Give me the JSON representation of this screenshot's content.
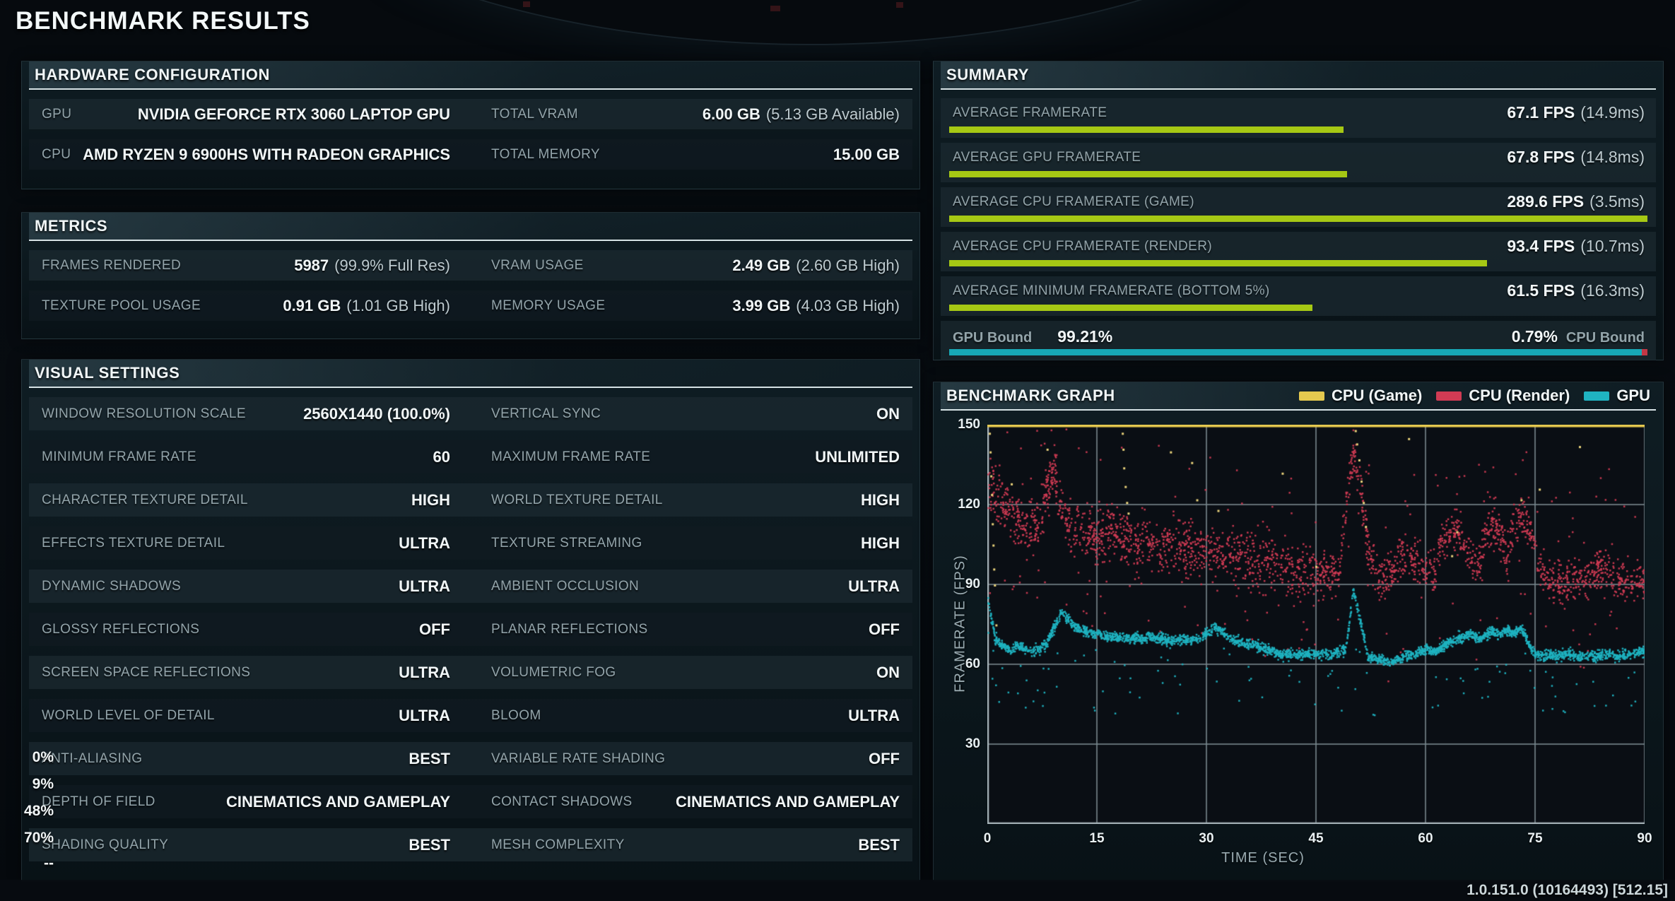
{
  "title": "BENCHMARK RESULTS",
  "colors": {
    "green": "#a6c814",
    "teal": "#17a8b6",
    "red": "#c23745",
    "yellow": "#e5c94f",
    "scatter_red": "#d13b54",
    "scatter_teal": "#1fb3c1",
    "scatter_yellow": "#e9d27a",
    "grid": "#78878d",
    "axis": "#a7b4b9",
    "plot_bg": "#0a0e14"
  },
  "panels": {
    "hardware": {
      "title": "HARDWARE CONFIGURATION",
      "rows": [
        {
          "cells": [
            {
              "label": "GPU",
              "value": "NVIDIA GEFORCE RTX 3060 LAPTOP GPU",
              "note": ""
            },
            {
              "label": "TOTAL VRAM",
              "value": "6.00 GB",
              "note": "(5.13 GB Available)"
            }
          ]
        },
        {
          "cells": [
            {
              "label": "CPU",
              "value": "AMD RYZEN 9 6900HS WITH RADEON GRAPHICS",
              "note": ""
            },
            {
              "label": "TOTAL MEMORY",
              "value": "15.00 GB",
              "note": ""
            }
          ]
        }
      ]
    },
    "metrics": {
      "title": "METRICS",
      "rows": [
        {
          "cells": [
            {
              "label": "FRAMES RENDERED",
              "value": "5987",
              "note": "(99.9% Full Res)"
            },
            {
              "label": "VRAM USAGE",
              "value": "2.49 GB",
              "note": "(2.60 GB High)"
            }
          ]
        },
        {
          "cells": [
            {
              "label": "TEXTURE POOL USAGE",
              "value": "0.91 GB",
              "note": "(1.01 GB High)"
            },
            {
              "label": "MEMORY USAGE",
              "value": "3.99 GB",
              "note": "(4.03 GB High)"
            }
          ]
        }
      ]
    },
    "visual": {
      "title": "VISUAL SETTINGS",
      "rows": [
        {
          "cells": [
            {
              "label": "WINDOW RESOLUTION SCALE",
              "value": "2560X1440 (100.0%)",
              "note": ""
            },
            {
              "label": "VERTICAL SYNC",
              "value": "ON",
              "note": ""
            }
          ]
        },
        {
          "cells": [
            {
              "label": "MINIMUM FRAME RATE",
              "value": "60",
              "note": ""
            },
            {
              "label": "MAXIMUM FRAME RATE",
              "value": "UNLIMITED",
              "note": ""
            }
          ]
        },
        {
          "cells": [
            {
              "label": "CHARACTER TEXTURE DETAIL",
              "value": "HIGH",
              "note": ""
            },
            {
              "label": "WORLD TEXTURE DETAIL",
              "value": "HIGH",
              "note": ""
            }
          ]
        },
        {
          "cells": [
            {
              "label": "EFFECTS TEXTURE DETAIL",
              "value": "ULTRA",
              "note": ""
            },
            {
              "label": "TEXTURE STREAMING",
              "value": "HIGH",
              "note": ""
            }
          ]
        },
        {
          "cells": [
            {
              "label": "DYNAMIC SHADOWS",
              "value": "ULTRA",
              "note": ""
            },
            {
              "label": "AMBIENT OCCLUSION",
              "value": "ULTRA",
              "note": ""
            }
          ]
        },
        {
          "cells": [
            {
              "label": "GLOSSY REFLECTIONS",
              "value": "OFF",
              "note": ""
            },
            {
              "label": "PLANAR REFLECTIONS",
              "value": "OFF",
              "note": ""
            }
          ]
        },
        {
          "cells": [
            {
              "label": "SCREEN SPACE REFLECTIONS",
              "value": "ULTRA",
              "note": ""
            },
            {
              "label": "VOLUMETRIC FOG",
              "value": "ON",
              "note": ""
            }
          ]
        },
        {
          "cells": [
            {
              "label": "WORLD LEVEL OF DETAIL",
              "value": "ULTRA",
              "note": ""
            },
            {
              "label": "BLOOM",
              "value": "ULTRA",
              "note": ""
            }
          ]
        },
        {
          "cells": [
            {
              "label": "ANTI-ALIASING",
              "value": "BEST",
              "note": ""
            },
            {
              "label": "VARIABLE RATE SHADING",
              "value": "OFF",
              "note": ""
            }
          ]
        },
        {
          "cells": [
            {
              "label": "DEPTH OF FIELD",
              "value": "CINEMATICS AND GAMEPLAY",
              "note": ""
            },
            {
              "label": "CONTACT SHADOWS",
              "value": "CINEMATICS AND GAMEPLAY",
              "note": ""
            }
          ]
        },
        {
          "cells": [
            {
              "label": "SHADING QUALITY",
              "value": "BEST",
              "note": ""
            },
            {
              "label": "MESH COMPLEXITY",
              "value": "BEST",
              "note": ""
            }
          ]
        }
      ]
    },
    "summary": {
      "title": "SUMMARY",
      "rows": [
        {
          "label": "AVERAGE FRAMERATE",
          "value": "67.1 FPS",
          "note": "(14.9ms)",
          "bar_pct": 56.5
        },
        {
          "label": "AVERAGE GPU FRAMERATE",
          "value": "67.8 FPS",
          "note": "(14.8ms)",
          "bar_pct": 57
        },
        {
          "label": "AVERAGE CPU FRAMERATE (GAME)",
          "value": "289.6 FPS",
          "note": "(3.5ms)",
          "bar_pct": 100
        },
        {
          "label": "AVERAGE CPU FRAMERATE (RENDER)",
          "value": "93.4 FPS",
          "note": "(10.7ms)",
          "bar_pct": 77
        },
        {
          "label": "AVERAGE MINIMUM FRAMERATE (BOTTOM 5%)",
          "value": "61.5 FPS",
          "note": "(16.3ms)",
          "bar_pct": 52
        }
      ],
      "bound": {
        "left_label": "GPU Bound",
        "left_value": "99.21%",
        "right_value": "0.79%",
        "right_label": "CPU Bound",
        "gpu_pct": 99.21,
        "cpu_pct": 0.79
      }
    },
    "graph": {
      "title": "BENCHMARK GRAPH",
      "legend": [
        {
          "label": "CPU (Game)",
          "color_key": "yellow"
        },
        {
          "label": "CPU (Render)",
          "color_key": "scatter_red"
        },
        {
          "label": "GPU",
          "color_key": "scatter_teal"
        }
      ]
    }
  },
  "left_edge_overlay": [
    "0%",
    "9%",
    "48%",
    "70%",
    "--"
  ],
  "footer": {
    "version": "1.0.151.0 (10164493) [512.15]"
  },
  "chart_data": {
    "type": "scatter",
    "title": "BENCHMARK GRAPH",
    "xlabel": "TIME (SEC)",
    "ylabel": "FRAMERATE (FPS)",
    "xlim": [
      0,
      90
    ],
    "ylim": [
      0,
      150
    ],
    "xticks": [
      0,
      15,
      30,
      45,
      60,
      75,
      90
    ],
    "yticks": [
      30,
      60,
      90,
      120,
      150
    ],
    "grid": true,
    "legend_position": "top-right",
    "series": [
      {
        "name": "CPU (Game)",
        "color": "#e9d27a",
        "style": "clipped-line-plus-scatter",
        "clipped_line_y": 150,
        "points": [
          [
            0.2,
            147
          ],
          [
            0.3,
            140
          ],
          [
            0.4,
            131
          ],
          [
            0.5,
            124
          ],
          [
            0.6,
            113
          ],
          [
            0.7,
            105
          ],
          [
            0.8,
            96
          ],
          [
            0.9,
            90
          ],
          [
            1.1,
            75
          ],
          [
            3.2,
            128
          ],
          [
            8.1,
            141
          ],
          [
            18.4,
            147
          ],
          [
            18.5,
            141
          ],
          [
            18.6,
            134
          ],
          [
            18.8,
            127
          ],
          [
            19.0,
            121
          ],
          [
            19.2,
            117
          ],
          [
            25.0,
            140
          ],
          [
            27.9,
            136
          ],
          [
            28.6,
            122
          ],
          [
            31.5,
            118
          ],
          [
            40.3,
            132
          ],
          [
            44.9,
            97
          ],
          [
            50.3,
            148
          ],
          [
            50.5,
            143
          ],
          [
            50.8,
            137
          ],
          [
            51.1,
            129
          ],
          [
            51.4,
            121
          ],
          [
            51.7,
            112
          ],
          [
            57.6,
            145
          ],
          [
            63.5,
            101
          ],
          [
            64.2,
            110
          ],
          [
            73.0,
            122
          ],
          [
            75.5,
            126
          ],
          [
            81.0,
            142
          ]
        ]
      },
      {
        "name": "CPU (Render)",
        "color": "#d13b54",
        "style": "scatter-band",
        "x_step": 1,
        "spread": 9,
        "mean": [
          128,
          125,
          121,
          118,
          115,
          113,
          111,
          113,
          126,
          133,
          121,
          113,
          111,
          109,
          110,
          109,
          108,
          110,
          109,
          108,
          107,
          108,
          106,
          105,
          106,
          105,
          104,
          105,
          103,
          102,
          103,
          102,
          101,
          102,
          100,
          101,
          100,
          99,
          100,
          99,
          98,
          97,
          96,
          95,
          95,
          94,
          95,
          94,
          95,
          120,
          140,
          125,
          105,
          94,
          93,
          93,
          100,
          102,
          100,
          96,
          95,
          95,
          105,
          108,
          110,
          107,
          100,
          96,
          108,
          112,
          110,
          100,
          112,
          116,
          112,
          100,
          95,
          92,
          92,
          91,
          92,
          93,
          92,
          95,
          97,
          95,
          93,
          92,
          92,
          91,
          92
        ]
      },
      {
        "name": "GPU",
        "color": "#1fb3c1",
        "style": "scatter-band",
        "x_step": 1,
        "spread": 1.9,
        "mean": [
          84,
          70,
          67,
          66,
          67,
          66,
          65,
          66,
          68,
          74,
          80,
          77,
          74,
          73,
          72,
          72,
          71,
          71,
          70,
          70,
          70,
          70,
          71,
          70,
          70,
          69,
          69,
          70,
          69,
          70,
          72,
          74,
          73,
          70,
          69,
          68,
          68,
          67,
          66,
          65,
          64,
          64,
          64,
          64,
          64,
          64,
          64,
          64,
          65,
          66,
          88,
          76,
          63,
          62,
          62,
          61,
          62,
          63,
          64,
          65,
          66,
          65,
          66,
          68,
          70,
          70,
          72,
          70,
          71,
          73,
          71,
          73,
          72,
          74,
          68,
          64,
          63,
          64,
          63,
          64,
          64,
          63,
          64,
          63,
          64,
          64,
          63,
          64,
          64,
          65,
          65
        ]
      }
    ]
  }
}
